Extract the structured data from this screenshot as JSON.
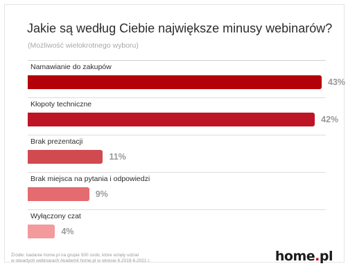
{
  "chart_data": {
    "type": "bar",
    "orientation": "horizontal",
    "title": "Jakie są według Ciebie największe minusy webinarów?",
    "subtitle": "(Możliwość wielokrotnego wyboru)",
    "categories": [
      "Namawianie do zakupów",
      "Kłopoty techniczne",
      "Brak prezentacji",
      "Brak miejsca na pytania i odpowiedzi",
      "Wyłączony czat"
    ],
    "values": [
      43,
      42,
      11,
      9,
      4
    ],
    "value_labels": [
      "43%",
      "42%",
      "11%",
      "9%",
      "4%"
    ],
    "unit": "%",
    "xlim": [
      0,
      43
    ],
    "grid": false,
    "bar_colors": [
      "#b30009",
      "#bd1426",
      "#d04a4f",
      "#e46b70",
      "#f39a9d"
    ]
  },
  "footnote": {
    "line1": "Źródło: badanie home.pl na grupie 500 osób, które wzięły udział",
    "line2": "w otwartych webinarach Akademii home.pl w okresie 6.2019-6.2021 r."
  },
  "logo": {
    "pre": "home",
    "dot": ".",
    "post": "pl"
  }
}
